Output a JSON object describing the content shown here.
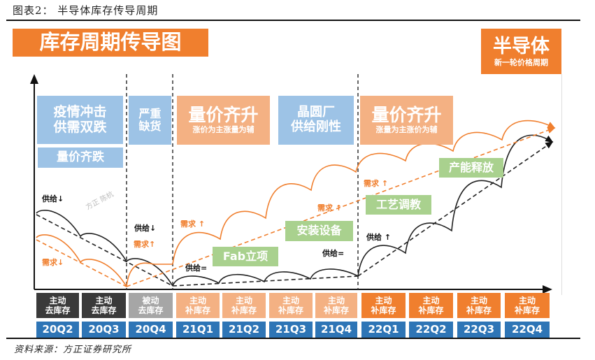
{
  "caption": "图表2：  半导体库存传导周期",
  "source": "资料来源：方正证券研究所",
  "title": "库存周期传导图",
  "corner": {
    "title": "半导体",
    "subtitle": "新一轮价格周期"
  },
  "phases": [
    {
      "line1": "疫情冲击",
      "line2": "供需双跌"
    },
    {
      "text": "量价齐跌"
    },
    {
      "line1": "严重",
      "line2": "缺货"
    },
    {
      "title": "量价齐升",
      "subtitle": "涨价为主涨量为辅"
    },
    {
      "line1": "晶圆厂",
      "line2": "供给刚性"
    },
    {
      "title": "量价齐升",
      "subtitle": "涨量为主涨价为辅"
    }
  ],
  "milestones": [
    "Fab立项",
    "安装设备",
    "工艺调教",
    "产能释放"
  ],
  "labels": {
    "supply_down_1": "供给↓",
    "demand_down": "需求↓",
    "supply_down_2": "供给↓",
    "demand_up_1": "需求↑",
    "demand_up_2": "需求 ↑",
    "supply_flat_1": "供给=",
    "demand_up_3": "需求 ↑",
    "supply_flat_2": "供给=",
    "demand_up_4": "需求 ↑",
    "supply_up": "供给 ↑"
  },
  "watermark": "方正 陈杭",
  "stages": [
    {
      "line1": "主动",
      "line2": "去库存",
      "color": "#3A3A3A"
    },
    {
      "line1": "主动",
      "line2": "去库存",
      "color": "#3A3A3A"
    },
    {
      "line1": "被动",
      "line2": "去库存",
      "color": "#A6A6A6"
    },
    {
      "line1": "主动",
      "line2": "补库存",
      "color": "#F4B183"
    },
    {
      "line1": "主动",
      "line2": "补库存",
      "color": "#F4B183"
    },
    {
      "line1": "主动",
      "line2": "补库存",
      "color": "#F4B183"
    },
    {
      "line1": "主动",
      "line2": "补库存",
      "color": "#F4B183"
    },
    {
      "line1": "主动",
      "line2": "补库存",
      "color": "#F07F2E"
    },
    {
      "line1": "主动",
      "line2": "补库存",
      "color": "#F07F2E"
    },
    {
      "line1": "主动",
      "line2": "补库存",
      "color": "#F07F2E"
    },
    {
      "line1": "主动",
      "line2": "补库存",
      "color": "#F07F2E"
    }
  ],
  "quarters": [
    "20Q2",
    "20Q3",
    "20Q4",
    "21Q1",
    "21Q2",
    "21Q3",
    "21Q4",
    "22Q1",
    "22Q2",
    "22Q3",
    "22Q4"
  ],
  "colors": {
    "supply": "#222222",
    "demand": "#F07F2E",
    "quarter_bar": "#2E75B6",
    "phase_blue": "#9DC3E6",
    "phase_orange": "#F4B183",
    "milestone_green": "#A9D18E"
  }
}
